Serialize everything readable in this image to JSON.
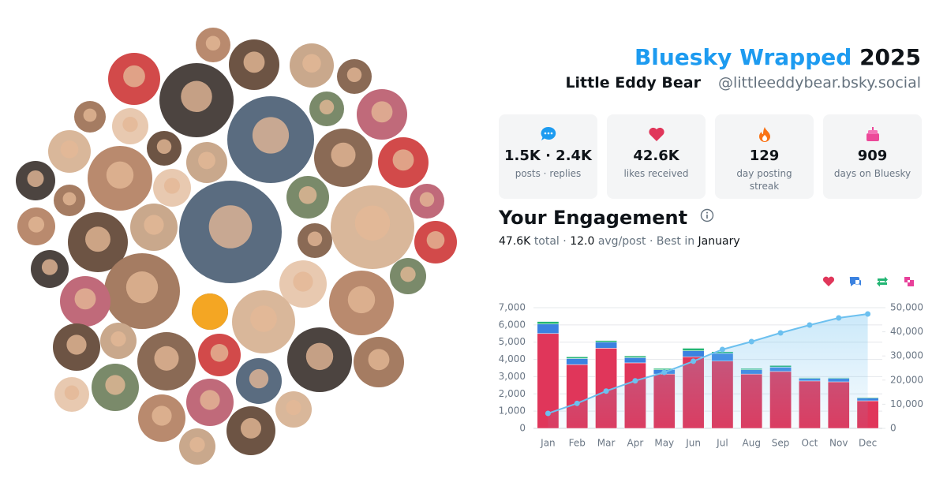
{
  "header": {
    "brand": "Bluesky Wrapped",
    "year": "2025",
    "name": "Little Eddy Bear",
    "handle": "@littleeddybear.bsky.social"
  },
  "stats": [
    {
      "value": "1.5K · 2.4K",
      "label": "posts · replies"
    },
    {
      "value": "42.6K",
      "label": "likes received"
    },
    {
      "value": "129",
      "label": "day posting streak"
    },
    {
      "value": "909",
      "label": "days on Bluesky"
    }
  ],
  "engagement": {
    "title": "Your Engagement",
    "summary": [
      {
        "text": "47.6K",
        "muted": false
      },
      {
        "text": "total ·",
        "muted": true
      },
      {
        "text": "12.0",
        "muted": false
      },
      {
        "text": "avg/post ·",
        "muted": true
      },
      {
        "text": "Best in",
        "muted": true
      },
      {
        "text": "January",
        "muted": false
      }
    ]
  },
  "chart_data": {
    "type": "bar",
    "categories": [
      "Jan",
      "Feb",
      "Mar",
      "Apr",
      "May",
      "Jun",
      "Jul",
      "Aug",
      "Sep",
      "Oct",
      "Nov",
      "Dec"
    ],
    "series": [
      {
        "color": "#e0365a",
        "values": [
          5500,
          3700,
          4650,
          3800,
          3150,
          4150,
          3900,
          3150,
          3300,
          2750,
          2700,
          1600
        ]
      },
      {
        "color": "#3b82e0",
        "values": [
          550,
          350,
          350,
          300,
          250,
          350,
          450,
          250,
          250,
          150,
          200,
          150
        ]
      },
      {
        "color": "#22b573",
        "values": [
          150,
          100,
          100,
          100,
          80,
          150,
          100,
          80,
          100,
          50,
          50,
          50
        ]
      },
      {
        "color": "#e8409a",
        "values": [
          20,
          20,
          20,
          20,
          20,
          20,
          20,
          20,
          20,
          20,
          20,
          20
        ]
      },
      {
        "type": "line",
        "axis": "y2",
        "color": "#6cc0ef",
        "values": [
          6200,
          10350,
          15450,
          19700,
          23200,
          27800,
          32680,
          35950,
          39540,
          42800,
          45750,
          47390
        ]
      }
    ],
    "ylim": [
      0,
      7000
    ],
    "yticks": [
      0,
      {
        "value": 1000,
        "label": "1,000"
      },
      {
        "value": 2000,
        "label": "2,000"
      },
      {
        "value": 3000,
        "label": "3,000"
      },
      {
        "value": 4000,
        "label": "4,000"
      },
      {
        "value": 5000,
        "label": "5,000"
      },
      {
        "value": 6000,
        "label": "6,000"
      },
      {
        "value": 7000,
        "label": "7,000"
      }
    ],
    "y2lim": [
      0,
      50000
    ],
    "y2ticks": [
      0,
      {
        "value": 10000,
        "label": "10,000"
      },
      {
        "value": 20000,
        "label": "20,000"
      },
      {
        "value": 30000,
        "label": "30,000"
      },
      {
        "value": 40000,
        "label": "40,000"
      },
      {
        "value": 50000,
        "label": "50,000"
      }
    ],
    "grid": true,
    "legend": "top-right"
  }
}
